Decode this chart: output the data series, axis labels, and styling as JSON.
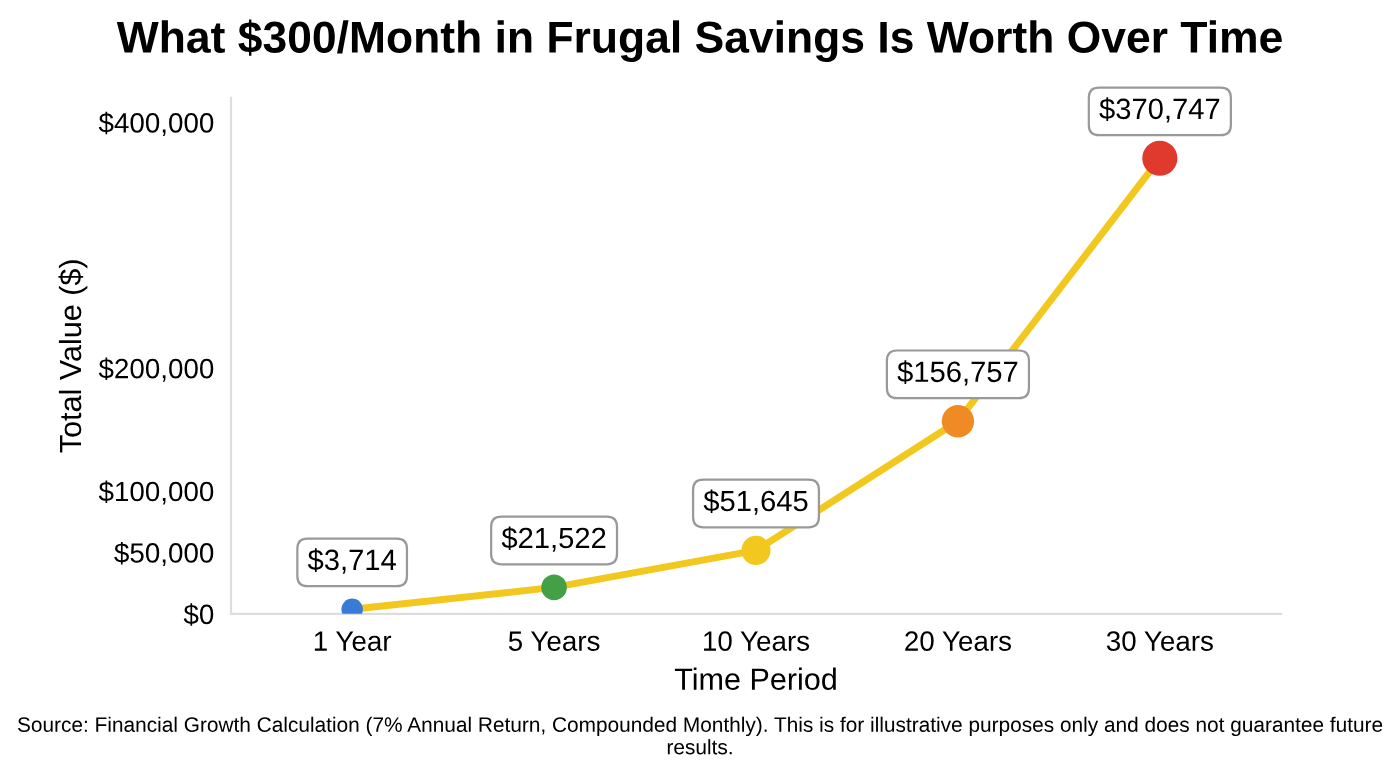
{
  "chart_data": {
    "type": "line",
    "title": "What $300/Month in Frugal Savings Is Worth Over Time",
    "xlabel": "Time Period",
    "ylabel": "Total Value ($)",
    "categories": [
      "1 Year",
      "5 Years",
      "10 Years",
      "20 Years",
      "30 Years"
    ],
    "series": [
      {
        "values": [
          3714,
          21522,
          51645,
          156757,
          370747
        ],
        "colors": [
          "#3a7bd5",
          "#43a047",
          "#f2c81e",
          "#f08a24",
          "#e03a2f"
        ]
      }
    ],
    "ylim": [
      0,
      420000
    ],
    "yticks": [
      {
        "value": 0,
        "label": "$0"
      },
      {
        "value": 50000,
        "label": "$50,000"
      },
      {
        "value": 100000,
        "label": "$100,000"
      },
      {
        "value": 200000,
        "label": "$200,000"
      },
      {
        "value": 400000,
        "label": "$400,000"
      }
    ],
    "value_labels": [
      "$3,714",
      "$21,522",
      "$51,645",
      "$156,757",
      "$370,747"
    ],
    "marker": "circle",
    "grid": false,
    "legend": false,
    "annotations": [
      "Source: Financial Growth Calculation (7% Annual Return, Compounded Monthly). This is for illustrative purposes only and does not guarantee future results."
    ]
  }
}
